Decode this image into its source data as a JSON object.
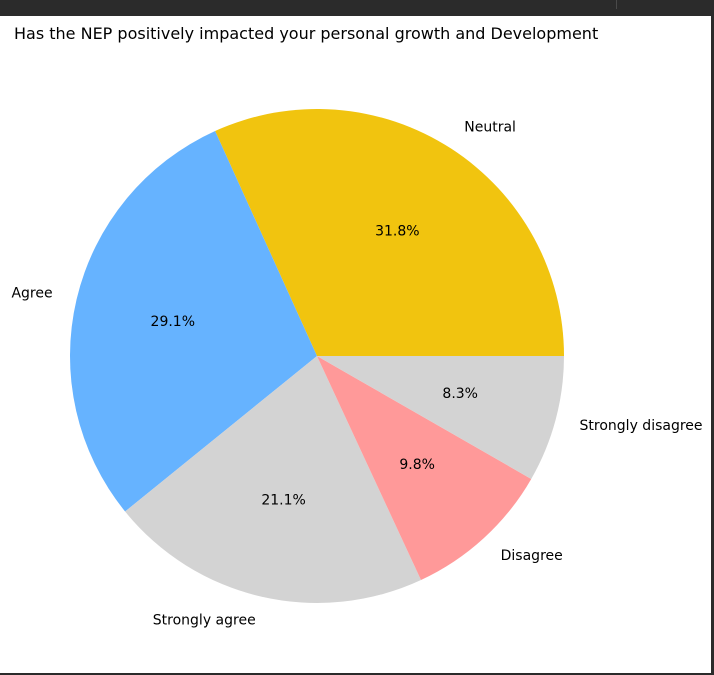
{
  "chart_data": {
    "type": "pie",
    "title": "Has the NEP positively impacted your personal growth and Development",
    "slices": [
      {
        "label": "Neutral",
        "value": 31.8,
        "pct_label": "31.8%",
        "color": "#f1c40f"
      },
      {
        "label": "Agree",
        "value": 29.1,
        "pct_label": "29.1%",
        "color": "#66b3ff"
      },
      {
        "label": "Strongly agree",
        "value": 21.1,
        "pct_label": "21.1%",
        "color": "#d3d3d3"
      },
      {
        "label": "Disagree",
        "value": 9.8,
        "pct_label": "9.8%",
        "color": "#ff9999"
      },
      {
        "label": "Strongly disagree",
        "value": 8.3,
        "pct_label": "8.3%",
        "color": "#d3d3d3"
      }
    ],
    "start_angle": 0,
    "direction": "counterclockwise",
    "legend": "none"
  }
}
